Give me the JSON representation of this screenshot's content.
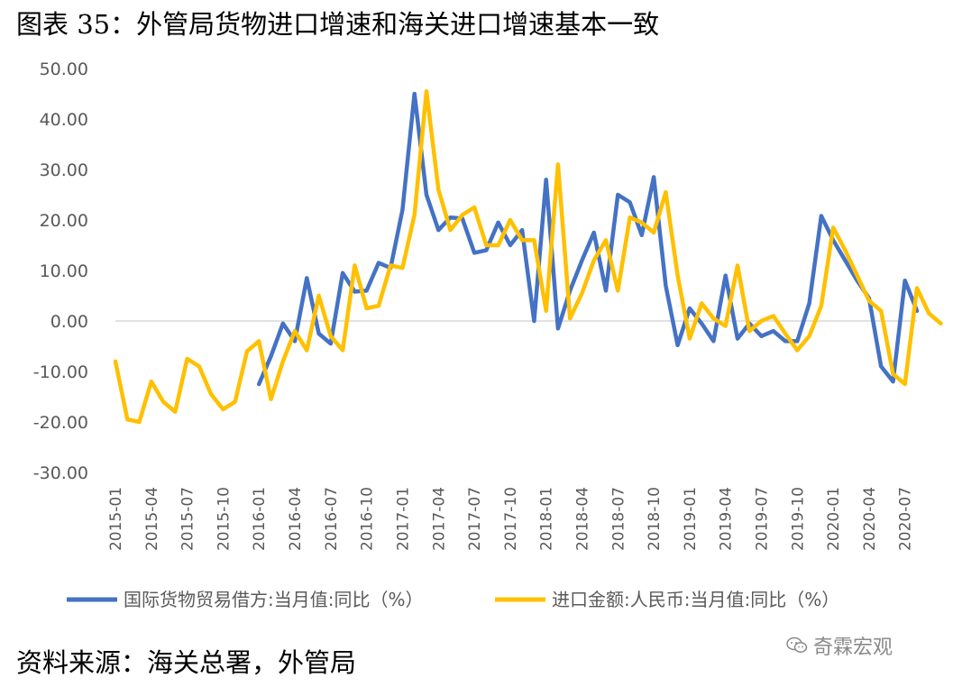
{
  "title": "图表 35：外管局货物进口增速和海关进口增速基本一致",
  "source": "资料来源：海关总署，外管局",
  "watermark": "奇霖宏观",
  "watermark_icon": "wechat-icon",
  "chart_data": {
    "type": "line",
    "ylim": [
      -30,
      50
    ],
    "y_ticks": [
      "50.00",
      "40.00",
      "30.00",
      "20.00",
      "10.00",
      "0.00",
      "-10.00",
      "-20.00",
      "-30.00"
    ],
    "y_tick_values": [
      50,
      40,
      30,
      20,
      10,
      0,
      -10,
      -20,
      -30
    ],
    "x_tick_labels": [
      "2015-01",
      "2015-04",
      "2015-07",
      "2015-10",
      "2016-01",
      "2016-04",
      "2016-07",
      "2016-10",
      "2017-01",
      "2017-04",
      "2017-07",
      "2017-10",
      "2018-01",
      "2018-04",
      "2018-07",
      "2018-10",
      "2019-01",
      "2019-04",
      "2019-07",
      "2019-10",
      "2020-01",
      "2020-04",
      "2020-07"
    ],
    "x_start": "2015-01",
    "x_end": "2020-08",
    "grid": "horizontal-zero-only",
    "legend_position": "bottom",
    "series": [
      {
        "name": "国际货物贸易借方:当月值:同比（%）",
        "color": "#4472C4",
        "start": "2016-01",
        "values": [
          -12.5,
          -7,
          -0.5,
          -4,
          8.5,
          -2.5,
          -4.5,
          9.5,
          5.8,
          6,
          11.5,
          10.5,
          22,
          45,
          25,
          18,
          20.5,
          20.3,
          13.5,
          14,
          19.5,
          15,
          18,
          0,
          28,
          -1.5,
          6,
          12,
          17.5,
          6,
          25,
          23.5,
          17,
          28.5,
          7,
          -4.8,
          2.5,
          -0.5,
          -4,
          9,
          -3.5,
          -0.5,
          -3,
          -2,
          -4,
          -4,
          3.5,
          20.8,
          16,
          12,
          8,
          4.5,
          -9,
          -12,
          8,
          2
        ]
      },
      {
        "name": "进口金额:人民币:当月值:同比（%）",
        "color": "#FFC000",
        "start": "2015-01",
        "values": [
          -8,
          -19.5,
          -20,
          -12,
          -16,
          -18,
          -7.5,
          -9,
          -14.5,
          -17.5,
          -16,
          -6,
          -4,
          -15.5,
          -8,
          -2,
          -5.8,
          5,
          -3,
          -5.8,
          11,
          2.5,
          3,
          11,
          10.5,
          21,
          45.5,
          26,
          18,
          21,
          22.5,
          15,
          15,
          20,
          16,
          16,
          2,
          31,
          0.5,
          5.5,
          12,
          16,
          6,
          20.5,
          19.5,
          17.5,
          25.5,
          9,
          -3.5,
          3.5,
          0.5,
          -1,
          11,
          -2,
          0,
          1,
          -2.5,
          -5.8,
          -3,
          3,
          18.5,
          14,
          9,
          4,
          2,
          -10.5,
          -12.5,
          6.5,
          1.5,
          -0.5
        ]
      }
    ]
  }
}
